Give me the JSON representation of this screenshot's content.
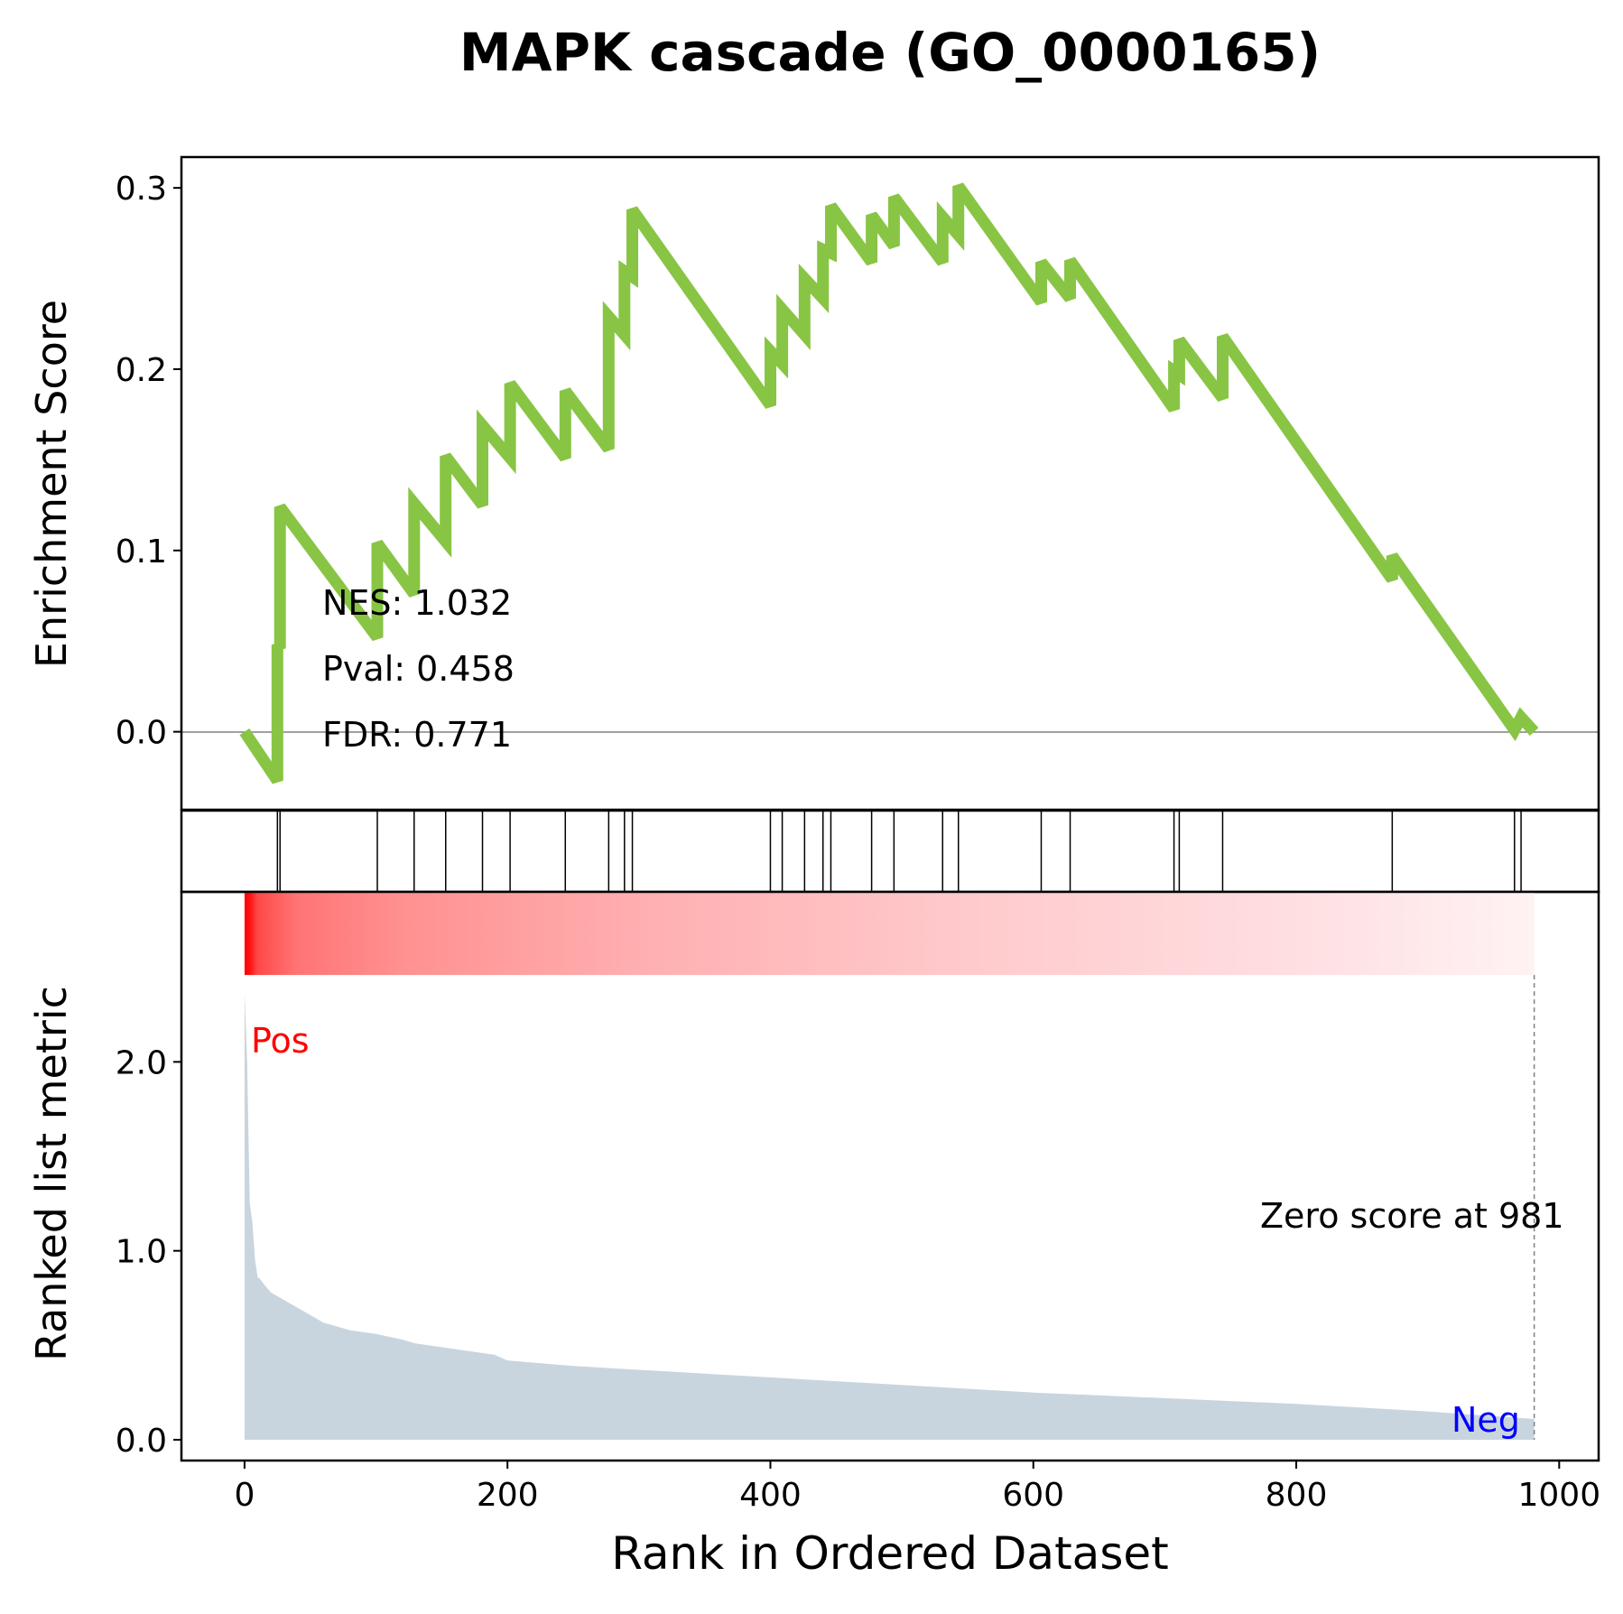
{
  "chart_data": {
    "type": "line",
    "title": "MAPK cascade (GO_0000165)",
    "xlabel": "Rank in Ordered Dataset",
    "xlim": [
      -48,
      1030
    ],
    "x_ticks": [
      0,
      200,
      400,
      600,
      800,
      1000
    ],
    "colors": {
      "es_line": "#88c544",
      "metric_fill": "#c9d5de",
      "pos_label": "#ff0000",
      "neg_label": "#0000ff",
      "zero_line": "#808080"
    },
    "es_panel": {
      "ylabel": "Enrichment Score",
      "ylim": [
        -0.043,
        0.317
      ],
      "y_ticks": [
        0.0,
        0.1,
        0.2,
        0.3
      ],
      "y_tick_labels": [
        "0.0",
        "0.1",
        "0.2",
        "0.3"
      ],
      "stats": [
        "NES: 1.032",
        "Pval: 0.458",
        "FDR: 0.771"
      ],
      "series": [
        {
          "x": [
            0,
            25,
            25,
            27,
            27,
            101,
            101,
            129,
            129,
            153,
            153,
            181,
            181,
            202,
            202,
            244,
            244,
            277,
            277,
            289,
            289,
            295,
            295,
            400,
            400,
            409,
            409,
            426,
            426,
            440,
            440,
            446,
            446,
            477,
            477,
            494,
            494,
            531,
            531,
            543,
            543,
            606,
            606,
            628,
            628,
            707,
            707,
            711,
            711,
            744,
            744,
            873,
            873,
            966,
            966,
            971,
            971,
            981
          ],
          "y": [
            0.0,
            -0.027,
            0.048,
            0.046,
            0.124,
            0.052,
            0.104,
            0.076,
            0.126,
            0.105,
            0.152,
            0.125,
            0.169,
            0.151,
            0.192,
            0.151,
            0.188,
            0.156,
            0.229,
            0.219,
            0.254,
            0.251,
            0.288,
            0.18,
            0.21,
            0.203,
            0.233,
            0.219,
            0.25,
            0.239,
            0.266,
            0.264,
            0.29,
            0.259,
            0.285,
            0.268,
            0.295,
            0.259,
            0.284,
            0.274,
            0.301,
            0.237,
            0.259,
            0.239,
            0.26,
            0.178,
            0.199,
            0.197,
            0.216,
            0.184,
            0.218,
            0.084,
            0.097,
            0.001,
            0.001,
            0.008,
            0.008,
            0.0
          ]
        }
      ]
    },
    "hits": [
      25,
      27,
      101,
      129,
      153,
      181,
      202,
      244,
      277,
      289,
      295,
      400,
      409,
      426,
      440,
      446,
      477,
      494,
      531,
      543,
      606,
      628,
      707,
      711,
      744,
      873,
      966,
      971
    ],
    "metric_panel": {
      "ylabel": "Ranked list metric",
      "ylim": [
        -0.11,
        2.9
      ],
      "y_ticks": [
        0.0,
        1.0,
        2.0
      ],
      "y_tick_labels": [
        "0.0",
        "1.0",
        "2.0"
      ],
      "pos_label": "Pos",
      "neg_label": "Neg",
      "zero_score_text": "Zero score at 981",
      "zero_score_rank": 981,
      "heatmap_range": [
        2.9,
        2.46
      ],
      "metric_curve": {
        "x": [
          0,
          2,
          4,
          6,
          8,
          10,
          12,
          15,
          20,
          25,
          30,
          40,
          50,
          60,
          70,
          80,
          100,
          120,
          130,
          150,
          170,
          190,
          200,
          250,
          300,
          350,
          400,
          450,
          500,
          550,
          600,
          650,
          700,
          750,
          800,
          850,
          900,
          950,
          981
        ],
        "y": [
          2.37,
          2.0,
          1.25,
          1.15,
          0.95,
          0.86,
          0.85,
          0.82,
          0.78,
          0.76,
          0.74,
          0.7,
          0.66,
          0.62,
          0.6,
          0.58,
          0.56,
          0.53,
          0.51,
          0.49,
          0.47,
          0.45,
          0.42,
          0.39,
          0.37,
          0.35,
          0.33,
          0.31,
          0.29,
          0.27,
          0.25,
          0.235,
          0.22,
          0.205,
          0.19,
          0.17,
          0.15,
          0.125,
          0.11
        ]
      }
    }
  }
}
